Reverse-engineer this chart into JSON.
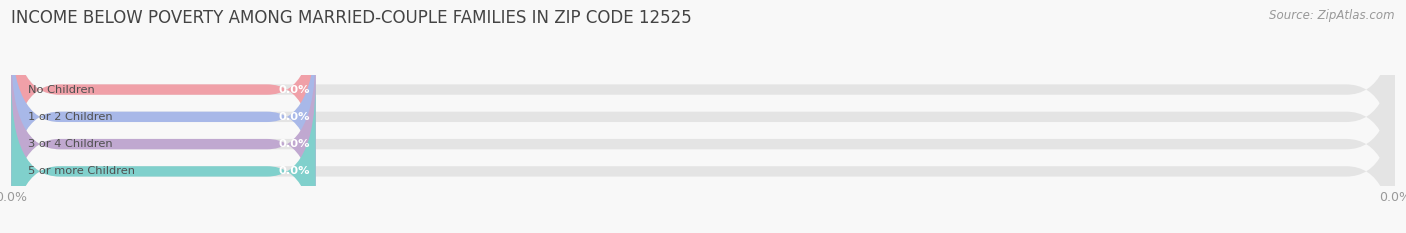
{
  "title": "INCOME BELOW POVERTY AMONG MARRIED-COUPLE FAMILIES IN ZIP CODE 12525",
  "source": "Source: ZipAtlas.com",
  "categories": [
    "No Children",
    "1 or 2 Children",
    "3 or 4 Children",
    "5 or more Children"
  ],
  "values": [
    0.0,
    0.0,
    0.0,
    0.0
  ],
  "bar_colors": [
    "#f0a0a8",
    "#a8b8e8",
    "#c0a8d0",
    "#80d0cc"
  ],
  "bar_bg_color": "#e4e4e4",
  "background_color": "#f8f8f8",
  "xlim": [
    0,
    100
  ],
  "title_fontsize": 12,
  "tick_label_color": "#999999",
  "source_color": "#999999",
  "bar_height": 0.38,
  "rounding_size": 3.5
}
